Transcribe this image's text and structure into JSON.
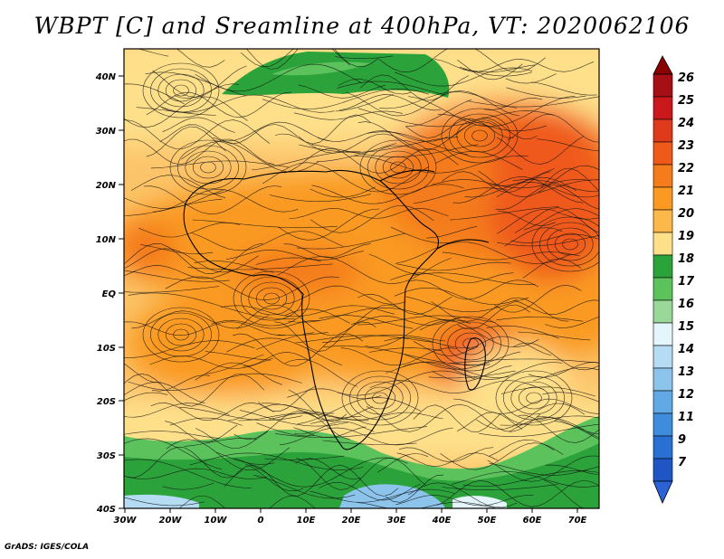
{
  "title": "WBPT [C] and Sreamline at 400hPa, VT: 2020062106",
  "credit": "GrADS: IGES/COLA",
  "lat_labels": [
    "40N",
    "30N",
    "20N",
    "10N",
    "EQ",
    "10S",
    "20S",
    "30S",
    "40S"
  ],
  "lon_labels": [
    "30W",
    "20W",
    "10W",
    "0",
    "10E",
    "20E",
    "30E",
    "40E",
    "50E",
    "60E",
    "70E"
  ],
  "colorbar": {
    "labels": [
      "26",
      "25",
      "24",
      "23",
      "22",
      "21",
      "20",
      "19",
      "18",
      "17",
      "16",
      "15",
      "14",
      "13",
      "12",
      "11",
      "9",
      "7"
    ],
    "colors": [
      "#a50f15",
      "#cb181d",
      "#e03a1c",
      "#ef5a1a",
      "#f47c1a",
      "#fa9a22",
      "#fdb84a",
      "#fee08b",
      "#2ca33a",
      "#5cc25c",
      "#9ad89a",
      "#e4f6fb",
      "#b6dcf3",
      "#8cc4ec",
      "#62a8e4",
      "#3f8cdc",
      "#2a6fd2",
      "#1f56c4"
    ],
    "top_arrow_color": "#8b0000",
    "bottom_arrow_color": "#2b62d8"
  }
}
